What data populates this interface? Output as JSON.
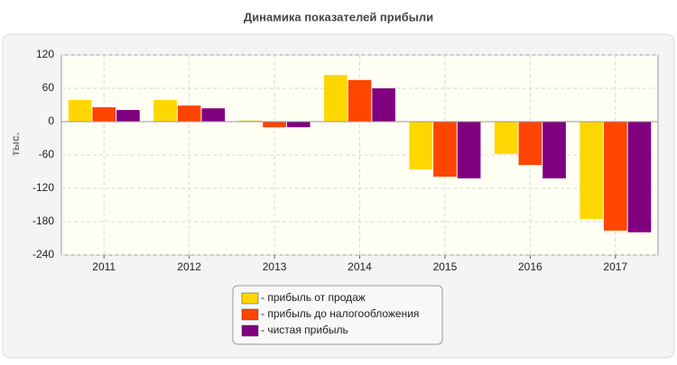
{
  "chart_data": {
    "type": "bar",
    "title": "Динамика показателей прибыли",
    "y_label": "тыс.",
    "categories": [
      "2011",
      "2012",
      "2013",
      "2014",
      "2015",
      "2016",
      "2017"
    ],
    "series": [
      {
        "name": "- прибыль от продаж",
        "color": "#ffd700",
        "values": [
          39,
          39,
          2,
          84,
          -86,
          -58,
          -175
        ]
      },
      {
        "name": "- прибыль до налогообложения",
        "color": "#ff4500",
        "values": [
          26,
          29,
          -10,
          75,
          -99,
          -78,
          -196
        ]
      },
      {
        "name": "- чистая прибыль",
        "color": "#800080",
        "values": [
          21,
          24,
          -10,
          60,
          -102,
          -102,
          -199
        ]
      }
    ],
    "ylim": [
      -240,
      120
    ],
    "yticks": [
      120,
      60,
      0,
      -60,
      -120,
      -180,
      -240
    ],
    "grid": true
  }
}
